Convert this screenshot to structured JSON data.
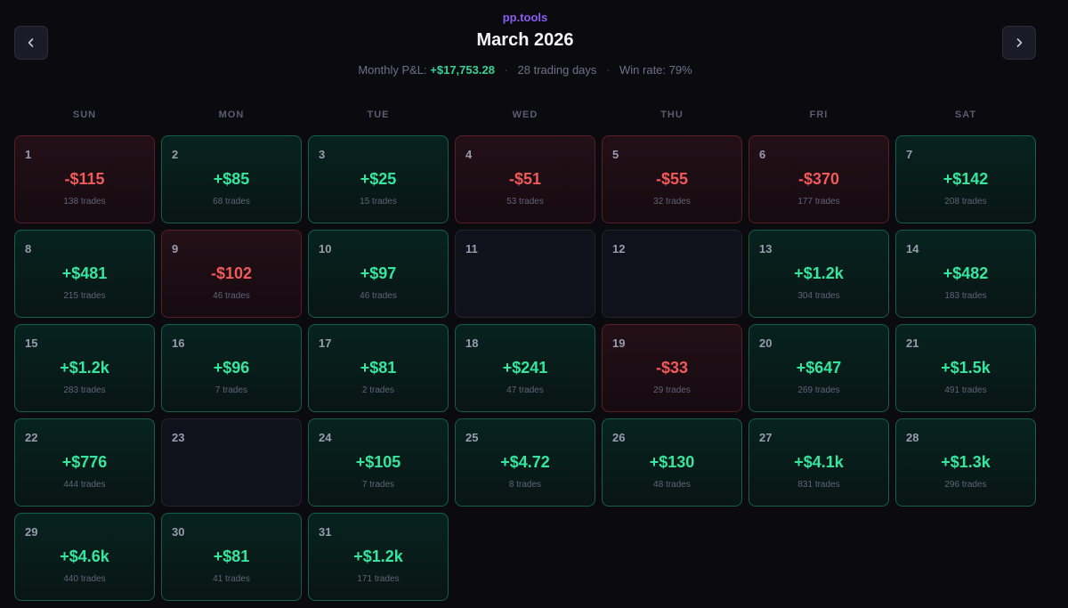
{
  "brand": "pp.tools",
  "header": {
    "title": "March 2026",
    "prev_icon": "chevron-left-icon",
    "next_icon": "chevron-right-icon"
  },
  "stats": {
    "pnl_label": "Monthly P&L:",
    "pnl_value": "+$17,753.28",
    "trading_days": "28 trading days",
    "win_rate": "Win rate: 79%"
  },
  "weekdays": [
    "SUN",
    "MON",
    "TUE",
    "WED",
    "THU",
    "FRI",
    "SAT"
  ],
  "colors": {
    "brand": "#8b5cf6",
    "positive": "#34e6a0",
    "negative": "#f05a5a",
    "background": "#0a0a0f"
  },
  "days": [
    {
      "day": "1",
      "status": "neg",
      "amount": "-$115",
      "trades": "138 trades"
    },
    {
      "day": "2",
      "status": "pos",
      "amount": "+$85",
      "trades": "68 trades"
    },
    {
      "day": "3",
      "status": "pos",
      "amount": "+$25",
      "trades": "15 trades"
    },
    {
      "day": "4",
      "status": "neg",
      "amount": "-$51",
      "trades": "53 trades"
    },
    {
      "day": "5",
      "status": "neg",
      "amount": "-$55",
      "trades": "32 trades"
    },
    {
      "day": "6",
      "status": "neg",
      "amount": "-$370",
      "trades": "177 trades"
    },
    {
      "day": "7",
      "status": "pos",
      "amount": "+$142",
      "trades": "208 trades"
    },
    {
      "day": "8",
      "status": "pos",
      "amount": "+$481",
      "trades": "215 trades"
    },
    {
      "day": "9",
      "status": "neg",
      "amount": "-$102",
      "trades": "46 trades"
    },
    {
      "day": "10",
      "status": "pos",
      "amount": "+$97",
      "trades": "46 trades"
    },
    {
      "day": "11",
      "status": "empty",
      "amount": "",
      "trades": ""
    },
    {
      "day": "12",
      "status": "empty",
      "amount": "",
      "trades": ""
    },
    {
      "day": "13",
      "status": "pos",
      "amount": "+$1.2k",
      "trades": "304 trades"
    },
    {
      "day": "14",
      "status": "pos",
      "amount": "+$482",
      "trades": "183 trades"
    },
    {
      "day": "15",
      "status": "pos",
      "amount": "+$1.2k",
      "trades": "283 trades"
    },
    {
      "day": "16",
      "status": "pos",
      "amount": "+$96",
      "trades": "7 trades"
    },
    {
      "day": "17",
      "status": "pos",
      "amount": "+$81",
      "trades": "2 trades"
    },
    {
      "day": "18",
      "status": "pos",
      "amount": "+$241",
      "trades": "47 trades"
    },
    {
      "day": "19",
      "status": "neg",
      "amount": "-$33",
      "trades": "29 trades"
    },
    {
      "day": "20",
      "status": "pos",
      "amount": "+$647",
      "trades": "269 trades"
    },
    {
      "day": "21",
      "status": "pos",
      "amount": "+$1.5k",
      "trades": "491 trades"
    },
    {
      "day": "22",
      "status": "pos",
      "amount": "+$776",
      "trades": "444 trades"
    },
    {
      "day": "23",
      "status": "empty",
      "amount": "",
      "trades": ""
    },
    {
      "day": "24",
      "status": "pos",
      "amount": "+$105",
      "trades": "7 trades"
    },
    {
      "day": "25",
      "status": "pos",
      "amount": "+$4.72",
      "trades": "8 trades"
    },
    {
      "day": "26",
      "status": "pos",
      "amount": "+$130",
      "trades": "48 trades"
    },
    {
      "day": "27",
      "status": "pos",
      "amount": "+$4.1k",
      "trades": "831 trades"
    },
    {
      "day": "28",
      "status": "pos",
      "amount": "+$1.3k",
      "trades": "296 trades"
    },
    {
      "day": "29",
      "status": "pos",
      "amount": "+$4.6k",
      "trades": "440 trades"
    },
    {
      "day": "30",
      "status": "pos",
      "amount": "+$81",
      "trades": "41 trades"
    },
    {
      "day": "31",
      "status": "pos",
      "amount": "+$1.2k",
      "trades": "171 trades"
    }
  ]
}
